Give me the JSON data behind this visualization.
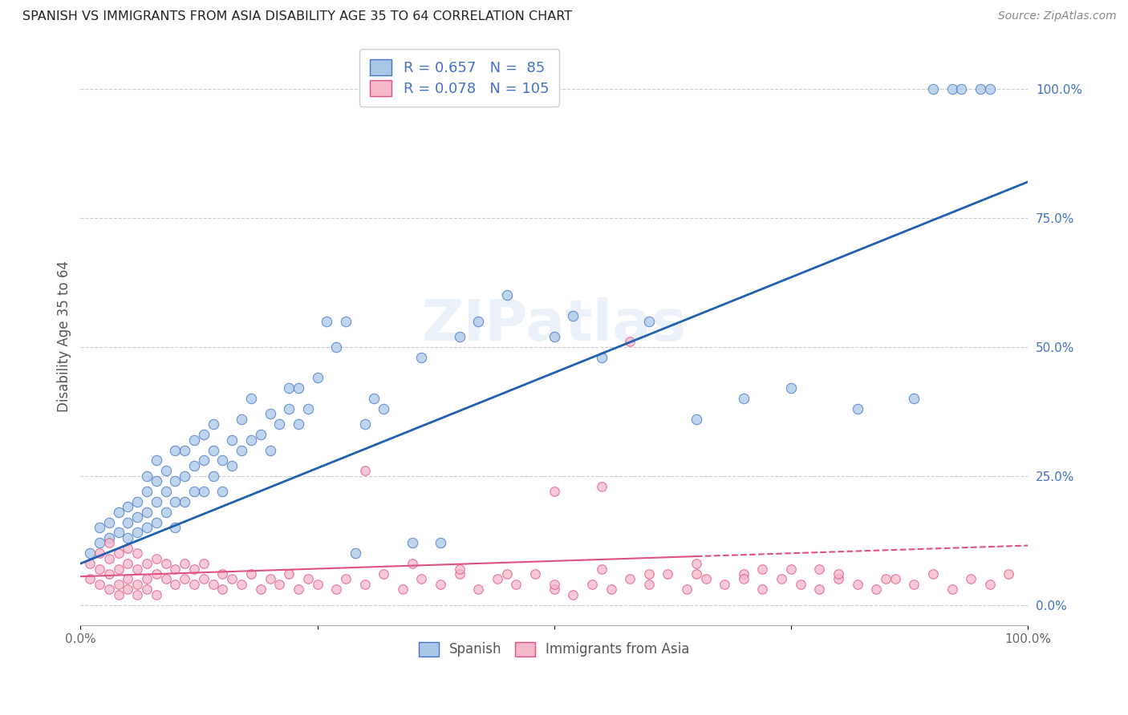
{
  "title": "SPANISH VS IMMIGRANTS FROM ASIA DISABILITY AGE 35 TO 64 CORRELATION CHART",
  "source": "Source: ZipAtlas.com",
  "ylabel": "Disability Age 35 to 64",
  "xlim": [
    0.0,
    1.0
  ],
  "ylim": [
    -0.04,
    1.08
  ],
  "color_spanish": "#a8c8e8",
  "color_spanish_edge": "#4472c4",
  "color_asia": "#f4b8c8",
  "color_asia_edge": "#e05080",
  "color_spanish_line": "#2060b0",
  "color_asia_line": "#e05080",
  "watermark": "ZIPatlas",
  "background_color": "#ffffff",
  "legend_r_spanish": "R = 0.657",
  "legend_n_spanish": "N =  85",
  "legend_r_asia": "R = 0.078",
  "legend_n_asia": "N = 105",
  "legend_label_spanish": "Spanish",
  "legend_label_asia": "Immigrants from Asia",
  "spanish_line_x": [
    0.0,
    1.0
  ],
  "spanish_line_y": [
    0.08,
    0.82
  ],
  "asia_line_x": [
    0.0,
    1.0
  ],
  "asia_line_y": [
    0.055,
    0.115
  ],
  "spanish_scatter_x": [
    0.01,
    0.02,
    0.02,
    0.03,
    0.03,
    0.04,
    0.04,
    0.05,
    0.05,
    0.05,
    0.06,
    0.06,
    0.06,
    0.07,
    0.07,
    0.07,
    0.07,
    0.08,
    0.08,
    0.08,
    0.08,
    0.09,
    0.09,
    0.09,
    0.1,
    0.1,
    0.1,
    0.1,
    0.11,
    0.11,
    0.11,
    0.12,
    0.12,
    0.12,
    0.13,
    0.13,
    0.13,
    0.14,
    0.14,
    0.14,
    0.15,
    0.15,
    0.16,
    0.16,
    0.17,
    0.17,
    0.18,
    0.18,
    0.19,
    0.2,
    0.2,
    0.21,
    0.22,
    0.22,
    0.23,
    0.23,
    0.24,
    0.25,
    0.26,
    0.27,
    0.28,
    0.29,
    0.3,
    0.31,
    0.32,
    0.35,
    0.36,
    0.38,
    0.4,
    0.42,
    0.45,
    0.5,
    0.52,
    0.55,
    0.6,
    0.65,
    0.7,
    0.75,
    0.82,
    0.88,
    0.9,
    0.92,
    0.93,
    0.95,
    0.96
  ],
  "spanish_scatter_y": [
    0.1,
    0.12,
    0.15,
    0.13,
    0.16,
    0.14,
    0.18,
    0.13,
    0.16,
    0.19,
    0.14,
    0.17,
    0.2,
    0.15,
    0.18,
    0.22,
    0.25,
    0.16,
    0.2,
    0.24,
    0.28,
    0.18,
    0.22,
    0.26,
    0.15,
    0.2,
    0.24,
    0.3,
    0.2,
    0.25,
    0.3,
    0.22,
    0.27,
    0.32,
    0.22,
    0.28,
    0.33,
    0.25,
    0.3,
    0.35,
    0.22,
    0.28,
    0.27,
    0.32,
    0.3,
    0.36,
    0.32,
    0.4,
    0.33,
    0.3,
    0.37,
    0.35,
    0.38,
    0.42,
    0.35,
    0.42,
    0.38,
    0.44,
    0.55,
    0.5,
    0.55,
    0.1,
    0.35,
    0.4,
    0.38,
    0.12,
    0.48,
    0.12,
    0.52,
    0.55,
    0.6,
    0.52,
    0.56,
    0.48,
    0.55,
    0.36,
    0.4,
    0.42,
    0.38,
    0.4,
    1.0,
    1.0,
    1.0,
    1.0,
    1.0
  ],
  "asia_scatter_x": [
    0.01,
    0.01,
    0.02,
    0.02,
    0.02,
    0.03,
    0.03,
    0.03,
    0.03,
    0.04,
    0.04,
    0.04,
    0.04,
    0.05,
    0.05,
    0.05,
    0.05,
    0.06,
    0.06,
    0.06,
    0.06,
    0.07,
    0.07,
    0.07,
    0.08,
    0.08,
    0.08,
    0.09,
    0.09,
    0.1,
    0.1,
    0.11,
    0.11,
    0.12,
    0.12,
    0.13,
    0.13,
    0.14,
    0.15,
    0.15,
    0.16,
    0.17,
    0.18,
    0.19,
    0.2,
    0.21,
    0.22,
    0.23,
    0.24,
    0.25,
    0.27,
    0.28,
    0.3,
    0.32,
    0.34,
    0.36,
    0.38,
    0.4,
    0.42,
    0.44,
    0.46,
    0.48,
    0.5,
    0.52,
    0.54,
    0.56,
    0.58,
    0.6,
    0.62,
    0.64,
    0.66,
    0.68,
    0.7,
    0.72,
    0.74,
    0.76,
    0.78,
    0.8,
    0.82,
    0.84,
    0.86,
    0.88,
    0.9,
    0.92,
    0.94,
    0.96,
    0.98,
    0.5,
    0.55,
    0.58,
    0.65,
    0.72,
    0.78,
    0.85,
    0.3,
    0.35,
    0.4,
    0.45,
    0.5,
    0.55,
    0.6,
    0.65,
    0.7,
    0.75,
    0.8
  ],
  "asia_scatter_y": [
    0.05,
    0.08,
    0.04,
    0.07,
    0.1,
    0.03,
    0.06,
    0.09,
    0.12,
    0.04,
    0.07,
    0.1,
    0.02,
    0.05,
    0.08,
    0.11,
    0.03,
    0.04,
    0.07,
    0.1,
    0.02,
    0.05,
    0.08,
    0.03,
    0.06,
    0.09,
    0.02,
    0.05,
    0.08,
    0.04,
    0.07,
    0.05,
    0.08,
    0.04,
    0.07,
    0.05,
    0.08,
    0.04,
    0.06,
    0.03,
    0.05,
    0.04,
    0.06,
    0.03,
    0.05,
    0.04,
    0.06,
    0.03,
    0.05,
    0.04,
    0.03,
    0.05,
    0.04,
    0.06,
    0.03,
    0.05,
    0.04,
    0.06,
    0.03,
    0.05,
    0.04,
    0.06,
    0.03,
    0.02,
    0.04,
    0.03,
    0.05,
    0.04,
    0.06,
    0.03,
    0.05,
    0.04,
    0.06,
    0.03,
    0.05,
    0.04,
    0.03,
    0.05,
    0.04,
    0.03,
    0.05,
    0.04,
    0.06,
    0.03,
    0.05,
    0.04,
    0.06,
    0.22,
    0.23,
    0.51,
    0.08,
    0.07,
    0.07,
    0.05,
    0.26,
    0.08,
    0.07,
    0.06,
    0.04,
    0.07,
    0.06,
    0.06,
    0.05,
    0.07,
    0.06
  ]
}
